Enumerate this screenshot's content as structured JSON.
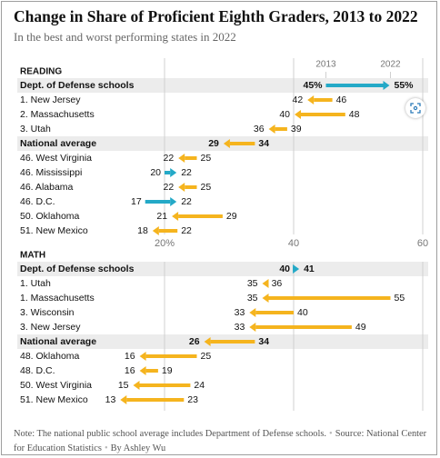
{
  "title": "Change in Share of Proficient Eighth Graders, 2013 to 2022",
  "subtitle": "In the best and worst performing states in 2022",
  "note": {
    "text": "Note: The national public school average includes Department of Defense schools.",
    "source": "Source: National Center for Education Statistics",
    "byline": "By Ashley Wu"
  },
  "colors": {
    "decline": "#f5b41e",
    "increase": "#24a9c7",
    "band": "#ececec",
    "text": "#121212",
    "muted": "#777777",
    "grid": "#d0d0d0"
  },
  "icons": {
    "expand": "expand-icon"
  },
  "chart_data": {
    "type": "dumbbell-arrow",
    "title": "Change in Share of Proficient Eighth Graders, 2013 to 2022",
    "subtitle": "In the best and worst performing states in 2022",
    "year_start_label": "2013",
    "year_end_label": "2022",
    "xlim": [
      0,
      60
    ],
    "ticks": [
      20,
      40,
      60
    ],
    "tick_labels": [
      "20%",
      "40",
      "60"
    ],
    "unit": "%",
    "grid": true,
    "sections": [
      {
        "name": "READING",
        "rows": [
          {
            "label": "Dept. of Defense schools",
            "start": 45,
            "end": 55,
            "start_label": "45%",
            "end_label": "55%",
            "highlight": true
          },
          {
            "label": "1. New Jersey",
            "start": 46,
            "end": 42,
            "start_label": "46",
            "end_label": "42"
          },
          {
            "label": "2. Massachusetts",
            "start": 48,
            "end": 40,
            "start_label": "48",
            "end_label": "40"
          },
          {
            "label": "3. Utah",
            "start": 39,
            "end": 36,
            "start_label": "39",
            "end_label": "36"
          },
          {
            "label": "National average",
            "start": 34,
            "end": 29,
            "start_label": "34",
            "end_label": "29",
            "highlight": true
          },
          {
            "label": "46. West Virginia",
            "start": 25,
            "end": 22,
            "start_label": "25",
            "end_label": "22"
          },
          {
            "label": "46. Mississippi",
            "start": 20,
            "end": 22,
            "start_label": "20",
            "end_label": "22"
          },
          {
            "label": "46. Alabama",
            "start": 25,
            "end": 22,
            "start_label": "25",
            "end_label": "22"
          },
          {
            "label": "46. D.C.",
            "start": 17,
            "end": 22,
            "start_label": "17",
            "end_label": "22"
          },
          {
            "label": "50. Oklahoma",
            "start": 29,
            "end": 21,
            "start_label": "29",
            "end_label": "21"
          },
          {
            "label": "51. New Mexico",
            "start": 22,
            "end": 18,
            "start_label": "22",
            "end_label": "18"
          }
        ]
      },
      {
        "name": "MATH",
        "rows": [
          {
            "label": "Dept. of Defense schools",
            "start": 40,
            "end": 41,
            "start_label": "40",
            "end_label": "41",
            "highlight": true
          },
          {
            "label": "1. Utah",
            "start": 36,
            "end": 35,
            "start_label": "36",
            "end_label": "35"
          },
          {
            "label": "1. Massachusetts",
            "start": 55,
            "end": 35,
            "start_label": "55",
            "end_label": "35"
          },
          {
            "label": "3. Wisconsin",
            "start": 40,
            "end": 33,
            "start_label": "40",
            "end_label": "33"
          },
          {
            "label": "3. New Jersey",
            "start": 49,
            "end": 33,
            "start_label": "49",
            "end_label": "33"
          },
          {
            "label": "National average",
            "start": 34,
            "end": 26,
            "start_label": "34",
            "end_label": "26",
            "highlight": true
          },
          {
            "label": "48. Oklahoma",
            "start": 25,
            "end": 16,
            "start_label": "25",
            "end_label": "16"
          },
          {
            "label": "48. D.C.",
            "start": 19,
            "end": 16,
            "start_label": "19",
            "end_label": "16"
          },
          {
            "label": "50. West Virginia",
            "start": 24,
            "end": 15,
            "start_label": "24",
            "end_label": "15"
          },
          {
            "label": "51. New Mexico",
            "start": 23,
            "end": 13,
            "start_label": "23",
            "end_label": "13"
          }
        ]
      }
    ]
  }
}
